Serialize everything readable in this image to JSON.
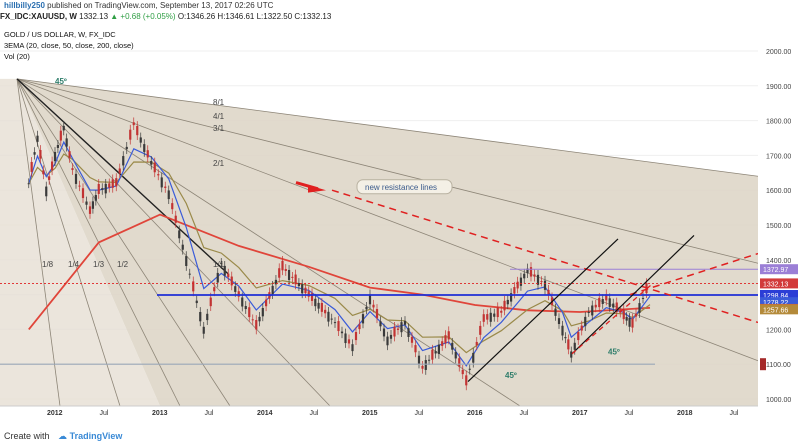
{
  "header": {
    "user": "hillbilly250",
    "published_text": "published on TradingView.com, September 13, 2017 02:26 UTC"
  },
  "symbol_bar": {
    "symbol": "FX_IDC:XAUUSD, W",
    "price": "1332.13",
    "change": "▲ +0.68 (+0.05%)",
    "open": "O:1346.26",
    "high": "H:1346.61",
    "low": "L:1322.50",
    "close": "C:1332.13"
  },
  "chart_data": {
    "type": "candlestick",
    "title": "GOLD / US DOLLAR, W, FX_IDC",
    "indicators": [
      "3EMA (20, close, 50, close, 200, close)",
      "Vol (20)"
    ],
    "x_ticks": [
      "2012",
      "Jul",
      "2013",
      "Jul",
      "2014",
      "Jul",
      "2015",
      "Jul",
      "2016",
      "Jul",
      "2017",
      "Jul",
      "2018",
      "Jul"
    ],
    "ylim": [
      1000,
      2000
    ],
    "y_ticks": [
      2000,
      1900,
      1800,
      1700,
      1600,
      1500,
      1400,
      1300,
      1200,
      1100,
      1000
    ],
    "y_tick_labels": [
      "2000.00",
      "1900.00",
      "1800.00",
      "1700.00",
      "1600.00",
      "1500.00",
      "1400.00",
      "1300.00",
      "1200.00",
      "1100.00",
      "1000.00"
    ],
    "price_path": [
      [
        "2011-10",
        1620
      ],
      [
        "2011-11",
        1750
      ],
      [
        "2011-12",
        1600
      ],
      [
        "2012-01",
        1700
      ],
      [
        "2012-02",
        1780
      ],
      [
        "2012-03",
        1660
      ],
      [
        "2012-05",
        1540
      ],
      [
        "2012-06",
        1600
      ],
      [
        "2012-08",
        1620
      ],
      [
        "2012-10",
        1790
      ],
      [
        "2012-12",
        1680
      ],
      [
        "2013-02",
        1590
      ],
      [
        "2013-04",
        1400
      ],
      [
        "2013-06",
        1200
      ],
      [
        "2013-08",
        1390
      ],
      [
        "2013-10",
        1300
      ],
      [
        "2013-12",
        1210
      ],
      [
        "2014-03",
        1380
      ],
      [
        "2014-06",
        1300
      ],
      [
        "2014-09",
        1220
      ],
      [
        "2014-11",
        1150
      ],
      [
        "2015-01",
        1290
      ],
      [
        "2015-03",
        1170
      ],
      [
        "2015-05",
        1220
      ],
      [
        "2015-07",
        1090
      ],
      [
        "2015-10",
        1180
      ],
      [
        "2015-12",
        1050
      ],
      [
        "2016-02",
        1230
      ],
      [
        "2016-04",
        1250
      ],
      [
        "2016-07",
        1370
      ],
      [
        "2016-09",
        1330
      ],
      [
        "2016-11",
        1200
      ],
      [
        "2016-12",
        1130
      ],
      [
        "2017-02",
        1250
      ],
      [
        "2017-04",
        1290
      ],
      [
        "2017-06",
        1240
      ],
      [
        "2017-07",
        1215
      ],
      [
        "2017-09",
        1340
      ]
    ],
    "series": [
      {
        "name": "EMA 20",
        "color": "#3a5bd9"
      },
      {
        "name": "EMA 50",
        "color": "#9a8a4a"
      },
      {
        "name": "EMA 200",
        "color": "#e0453a"
      }
    ],
    "price_labels": [
      {
        "value": 1372.97,
        "text": "1372.97",
        "color": "#9b7fd6"
      },
      {
        "value": 1332.13,
        "text": "1332.13",
        "color": "#d23a3a"
      },
      {
        "value": 1298.84,
        "text": "1298.84",
        "color": "#2b3dd6"
      },
      {
        "value": 1278.22,
        "text": "1278.22",
        "color": "#3a5bd9"
      },
      {
        "value": 1258.76,
        "text": "1258.76",
        "color": "#e0453a"
      },
      {
        "value": 1257.66,
        "text": "1257.66",
        "color": "#b48a3a"
      }
    ],
    "annotations": {
      "fan_labels": [
        "8/1",
        "4/1",
        "3/1",
        "2/1",
        "1/1",
        "1/2",
        "1/3",
        "1/4",
        "1/8"
      ],
      "angle_labels": [
        "45º",
        "45º",
        "45º"
      ],
      "callout": "new resistance lines"
    },
    "grid": true
  },
  "footer": {
    "create_with": "Create with",
    "brand": "TradingView"
  },
  "colors": {
    "fan_fill": "#dcd3c4",
    "candle_up": "#3a3a3a",
    "candle_down": "#c23333",
    "ema20": "#3a5bd9",
    "ema50": "#9a8a4a",
    "ema200": "#e0453a",
    "support_blue": "#1f2fd6",
    "resistance_red": "#e02020",
    "fan_label": "#2e7d6a"
  }
}
